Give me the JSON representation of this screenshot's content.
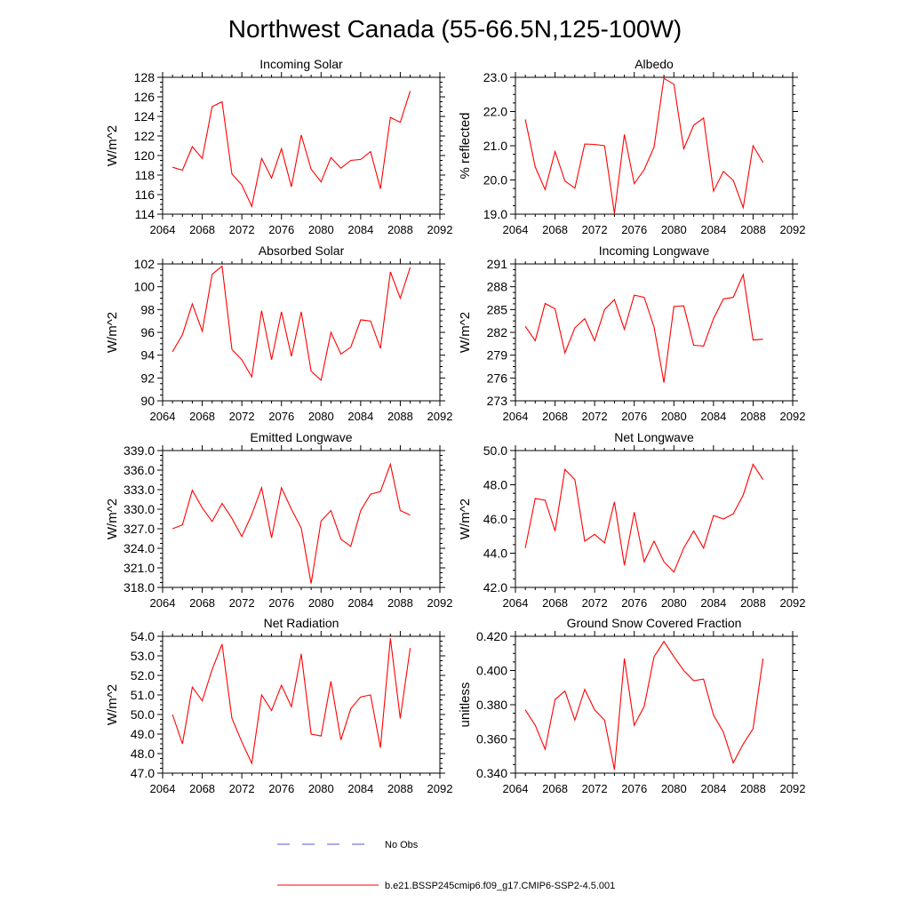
{
  "figure_title": "Northwest Canada (55-66.5N,125-100W)",
  "legend": {
    "entries": [
      {
        "label": "No Obs",
        "color": "#5555cc",
        "style": "dashed"
      },
      {
        "label": "b.e21.BSSP245cmip6.f09_g17.CMIP6-SSP2-4.5.001",
        "color": "#ff0000",
        "style": "solid"
      }
    ]
  },
  "chart_data": [
    {
      "type": "line",
      "title": "Incoming Solar",
      "ylabel": "W/m^2",
      "xlim": [
        2064,
        2092
      ],
      "ylim": [
        114,
        128
      ],
      "xticks": [
        2064,
        2068,
        2072,
        2076,
        2080,
        2084,
        2088,
        2092
      ],
      "xtick_labels": [
        "2064",
        "2068",
        "2072",
        "2076",
        "2080",
        "2084",
        "2088",
        "2092"
      ],
      "yticks": [
        114,
        116,
        118,
        120,
        122,
        124,
        126,
        128
      ],
      "ytick_labels": [
        "114",
        "116",
        "118",
        "120",
        "122",
        "124",
        "126",
        "128"
      ],
      "series": [
        {
          "color": "#ff0000",
          "x": [
            2065,
            2066,
            2067,
            2068,
            2069,
            2070,
            2071,
            2072,
            2073,
            2074,
            2075,
            2076,
            2077,
            2078,
            2079,
            2080,
            2081,
            2082,
            2083,
            2084,
            2085,
            2086,
            2087,
            2088,
            2089
          ],
          "y": [
            118.8,
            118.5,
            120.9,
            119.7,
            125.0,
            125.5,
            118.1,
            117.0,
            114.8,
            119.7,
            117.7,
            120.7,
            116.8,
            122.1,
            118.6,
            117.3,
            119.8,
            118.7,
            119.5,
            119.6,
            120.4,
            116.6,
            123.9,
            123.4,
            126.6
          ]
        }
      ]
    },
    {
      "type": "line",
      "title": "Albedo",
      "ylabel": "% reflected",
      "xlim": [
        2064,
        2092
      ],
      "ylim": [
        19.0,
        23.0
      ],
      "xticks": [
        2064,
        2068,
        2072,
        2076,
        2080,
        2084,
        2088,
        2092
      ],
      "xtick_labels": [
        "2064",
        "2068",
        "2072",
        "2076",
        "2080",
        "2084",
        "2088",
        "2092"
      ],
      "yticks": [
        19.0,
        20.0,
        21.0,
        22.0,
        23.0
      ],
      "ytick_labels": [
        "19.0",
        "20.0",
        "21.0",
        "22.0",
        "23.0"
      ],
      "series": [
        {
          "color": "#ff0000",
          "x": [
            2065,
            2066,
            2067,
            2068,
            2069,
            2070,
            2071,
            2072,
            2073,
            2074,
            2075,
            2076,
            2077,
            2078,
            2079,
            2080,
            2081,
            2082,
            2083,
            2084,
            2085,
            2086,
            2087,
            2088,
            2089
          ],
          "y": [
            21.77,
            20.38,
            19.72,
            20.83,
            19.97,
            19.76,
            21.05,
            21.04,
            21.0,
            19.02,
            21.33,
            19.89,
            20.3,
            20.96,
            22.97,
            22.8,
            20.91,
            21.6,
            21.81,
            19.67,
            20.25,
            19.99,
            19.19,
            21.0,
            20.51
          ]
        }
      ]
    },
    {
      "type": "line",
      "title": "Absorbed Solar",
      "ylabel": "W/m^2",
      "xlim": [
        2064,
        2092
      ],
      "ylim": [
        90,
        102
      ],
      "xticks": [
        2064,
        2068,
        2072,
        2076,
        2080,
        2084,
        2088,
        2092
      ],
      "xtick_labels": [
        "2064",
        "2068",
        "2072",
        "2076",
        "2080",
        "2084",
        "2088",
        "2092"
      ],
      "yticks": [
        90,
        92,
        94,
        96,
        98,
        100,
        102
      ],
      "ytick_labels": [
        "90",
        "92",
        "94",
        "96",
        "98",
        "100",
        "102"
      ],
      "series": [
        {
          "color": "#ff0000",
          "x": [
            2065,
            2066,
            2067,
            2068,
            2069,
            2070,
            2071,
            2072,
            2073,
            2074,
            2075,
            2076,
            2077,
            2078,
            2079,
            2080,
            2081,
            2082,
            2083,
            2084,
            2085,
            2086,
            2087,
            2088,
            2089
          ],
          "y": [
            94.3,
            95.8,
            98.5,
            96.1,
            101.1,
            101.8,
            94.5,
            93.6,
            92.1,
            97.9,
            93.6,
            97.8,
            93.9,
            97.8,
            92.6,
            91.8,
            96.0,
            94.1,
            94.7,
            97.1,
            97.0,
            94.6,
            101.3,
            99.0,
            101.7
          ]
        }
      ]
    },
    {
      "type": "line",
      "title": "Incoming Longwave",
      "ylabel": "W/m^2",
      "xlim": [
        2064,
        2092
      ],
      "ylim": [
        273,
        291
      ],
      "xticks": [
        2064,
        2068,
        2072,
        2076,
        2080,
        2084,
        2088,
        2092
      ],
      "xtick_labels": [
        "2064",
        "2068",
        "2072",
        "2076",
        "2080",
        "2084",
        "2088",
        "2092"
      ],
      "yticks": [
        273,
        276,
        279,
        282,
        285,
        288,
        291
      ],
      "ytick_labels": [
        "273",
        "276",
        "279",
        "282",
        "285",
        "288",
        "291"
      ],
      "series": [
        {
          "color": "#ff0000",
          "x": [
            2065,
            2066,
            2067,
            2068,
            2069,
            2070,
            2071,
            2072,
            2073,
            2074,
            2075,
            2076,
            2077,
            2078,
            2079,
            2080,
            2081,
            2082,
            2083,
            2084,
            2085,
            2086,
            2087,
            2088,
            2089
          ],
          "y": [
            282.8,
            280.9,
            285.8,
            285.1,
            279.3,
            282.6,
            283.8,
            280.9,
            285.0,
            286.3,
            282.4,
            286.9,
            286.6,
            282.7,
            275.4,
            285.4,
            285.5,
            280.3,
            280.2,
            283.8,
            286.4,
            286.6,
            289.6,
            281.0,
            281.1
          ]
        }
      ]
    },
    {
      "type": "line",
      "title": "Emitted Longwave",
      "ylabel": "W/m^2",
      "xlim": [
        2064,
        2092
      ],
      "ylim": [
        318,
        339
      ],
      "xticks": [
        2064,
        2068,
        2072,
        2076,
        2080,
        2084,
        2088,
        2092
      ],
      "xtick_labels": [
        "2064",
        "2068",
        "2072",
        "2076",
        "2080",
        "2084",
        "2088",
        "2092"
      ],
      "yticks": [
        318,
        321,
        324,
        327,
        330,
        333,
        336,
        339
      ],
      "ytick_labels": [
        "318.0",
        "321.0",
        "324.0",
        "327.0",
        "330.0",
        "333.0",
        "336.0",
        "339.0"
      ],
      "series": [
        {
          "color": "#ff0000",
          "x": [
            2065,
            2066,
            2067,
            2068,
            2069,
            2070,
            2071,
            2072,
            2073,
            2074,
            2075,
            2076,
            2077,
            2078,
            2079,
            2080,
            2081,
            2082,
            2083,
            2084,
            2085,
            2086,
            2087,
            2088,
            2089
          ],
          "y": [
            327.0,
            327.6,
            332.9,
            330.2,
            328.1,
            330.9,
            328.6,
            325.8,
            329.2,
            333.3,
            325.6,
            333.3,
            330.0,
            327.1,
            318.6,
            328.2,
            329.8,
            325.4,
            324.3,
            329.8,
            332.3,
            332.7,
            336.9,
            329.8,
            329.1
          ]
        }
      ]
    },
    {
      "type": "line",
      "title": "Net Longwave",
      "ylabel": "W/m^2",
      "xlim": [
        2064,
        2092
      ],
      "ylim": [
        42.0,
        50.0
      ],
      "xticks": [
        2064,
        2068,
        2072,
        2076,
        2080,
        2084,
        2088,
        2092
      ],
      "xtick_labels": [
        "2064",
        "2068",
        "2072",
        "2076",
        "2080",
        "2084",
        "2088",
        "2092"
      ],
      "yticks": [
        42.0,
        44.0,
        46.0,
        48.0,
        50.0
      ],
      "ytick_labels": [
        "42.0",
        "44.0",
        "46.0",
        "48.0",
        "50.0"
      ],
      "series": [
        {
          "color": "#ff0000",
          "x": [
            2065,
            2066,
            2067,
            2068,
            2069,
            2070,
            2071,
            2072,
            2073,
            2074,
            2075,
            2076,
            2077,
            2078,
            2079,
            2080,
            2081,
            2082,
            2083,
            2084,
            2085,
            2086,
            2087,
            2088,
            2089
          ],
          "y": [
            44.3,
            47.2,
            47.1,
            45.3,
            48.9,
            48.3,
            44.7,
            45.1,
            44.6,
            47.0,
            43.3,
            46.4,
            43.5,
            44.7,
            43.5,
            42.9,
            44.3,
            45.3,
            44.3,
            46.2,
            46.0,
            46.3,
            47.4,
            49.2,
            48.3
          ]
        }
      ]
    },
    {
      "type": "line",
      "title": "Net Radiation",
      "ylabel": "W/m^2",
      "xlim": [
        2064,
        2092
      ],
      "ylim": [
        47.0,
        54.0
      ],
      "xticks": [
        2064,
        2068,
        2072,
        2076,
        2080,
        2084,
        2088,
        2092
      ],
      "xtick_labels": [
        "2064",
        "2068",
        "2072",
        "2076",
        "2080",
        "2084",
        "2088",
        "2092"
      ],
      "yticks": [
        47.0,
        48.0,
        49.0,
        50.0,
        51.0,
        52.0,
        53.0,
        54.0
      ],
      "ytick_labels": [
        "47.0",
        "48.0",
        "49.0",
        "50.0",
        "51.0",
        "52.0",
        "53.0",
        "54.0"
      ],
      "series": [
        {
          "color": "#ff0000",
          "x": [
            2065,
            2066,
            2067,
            2068,
            2069,
            2070,
            2071,
            2072,
            2073,
            2074,
            2075,
            2076,
            2077,
            2078,
            2079,
            2080,
            2081,
            2082,
            2083,
            2084,
            2085,
            2086,
            2087,
            2088,
            2089
          ],
          "y": [
            50.0,
            48.5,
            51.4,
            50.7,
            52.3,
            53.6,
            49.8,
            48.6,
            47.5,
            51.0,
            50.2,
            51.5,
            50.4,
            53.1,
            49.0,
            48.9,
            51.7,
            48.7,
            50.3,
            50.9,
            51.0,
            48.3,
            53.9,
            49.8,
            53.4
          ]
        }
      ]
    },
    {
      "type": "line",
      "title": "Ground Snow Covered Fraction",
      "ylabel": "unitless",
      "xlim": [
        2064,
        2092
      ],
      "ylim": [
        0.34,
        0.42
      ],
      "xticks": [
        2064,
        2068,
        2072,
        2076,
        2080,
        2084,
        2088,
        2092
      ],
      "xtick_labels": [
        "2064",
        "2068",
        "2072",
        "2076",
        "2080",
        "2084",
        "2088",
        "2092"
      ],
      "yticks": [
        0.34,
        0.36,
        0.38,
        0.4,
        0.42
      ],
      "ytick_labels": [
        "0.340",
        "0.360",
        "0.380",
        "0.400",
        "0.420"
      ],
      "series": [
        {
          "color": "#ff0000",
          "x": [
            2065,
            2066,
            2067,
            2068,
            2069,
            2070,
            2071,
            2072,
            2073,
            2074,
            2075,
            2076,
            2077,
            2078,
            2079,
            2080,
            2081,
            2082,
            2083,
            2084,
            2085,
            2086,
            2087,
            2088,
            2089
          ],
          "y": [
            0.377,
            0.368,
            0.354,
            0.383,
            0.388,
            0.371,
            0.389,
            0.377,
            0.371,
            0.342,
            0.407,
            0.368,
            0.379,
            0.408,
            0.417,
            0.408,
            0.4,
            0.394,
            0.395,
            0.374,
            0.364,
            0.346,
            0.357,
            0.366,
            0.407
          ]
        }
      ]
    }
  ]
}
